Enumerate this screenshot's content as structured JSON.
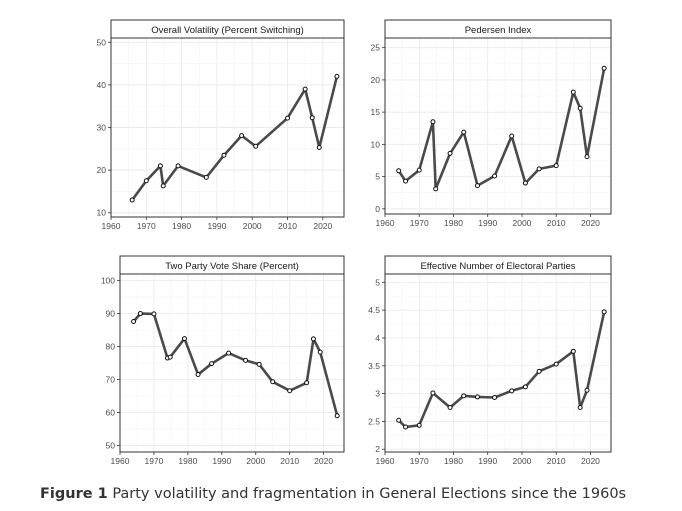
{
  "caption": {
    "label": "Figure 1",
    "text": "Party volatility and fragmentation in General Elections since the 1960s"
  },
  "colors": {
    "line": "#4a4a4a",
    "marker_fill": "#ffffff",
    "panel_border": "#333333",
    "grid": "#ebebeb",
    "axis_text": "#4d4d4d"
  },
  "chart_data": [
    {
      "type": "line",
      "title": "Overall Volatility (Percent Switching)",
      "xlabel": "",
      "ylabel": "",
      "xlim": [
        1960,
        2026
      ],
      "ylim": [
        9,
        51
      ],
      "xticks": [
        1960,
        1970,
        1980,
        1990,
        2000,
        2010,
        2020
      ],
      "yticks": [
        10,
        20,
        30,
        40,
        50
      ],
      "grid": true,
      "x": [
        1966,
        1970,
        1974,
        1974.8,
        1979,
        1987,
        1992,
        1997,
        2001,
        2010,
        2015,
        2017,
        2019,
        2024
      ],
      "y": [
        13,
        17.5,
        21,
        16.3,
        21,
        18.3,
        23.5,
        28.1,
        25.6,
        32.2,
        39,
        32.3,
        25.3,
        42
      ]
    },
    {
      "type": "line",
      "title": "Pedersen Index",
      "xlabel": "",
      "ylabel": "",
      "xlim": [
        1960,
        2026
      ],
      "ylim": [
        -0.8,
        26.5
      ],
      "xticks": [
        1960,
        1970,
        1980,
        1990,
        2000,
        2010,
        2020
      ],
      "yticks": [
        0,
        5,
        10,
        15,
        20,
        25
      ],
      "grid": true,
      "x": [
        1964,
        1966,
        1970,
        1974,
        1974.8,
        1979,
        1983,
        1987,
        1992,
        1997,
        2001,
        2005,
        2010,
        2015,
        2017,
        2019,
        2024
      ],
      "y": [
        5.9,
        4.3,
        6.0,
        13.5,
        3.1,
        8.6,
        11.9,
        3.6,
        5.1,
        11.3,
        4.0,
        6.2,
        6.7,
        18.1,
        15.6,
        8.1,
        21.8
      ]
    },
    {
      "type": "line",
      "title": "Two Party Vote Share (Percent)",
      "xlabel": "",
      "ylabel": "",
      "xlim": [
        1960,
        2026
      ],
      "ylim": [
        48,
        102
      ],
      "xticks": [
        1960,
        1970,
        1980,
        1990,
        2000,
        2010,
        2020
      ],
      "yticks": [
        50,
        60,
        70,
        80,
        90,
        100
      ],
      "grid": true,
      "x": [
        1964,
        1966,
        1970,
        1974,
        1974.8,
        1979,
        1983,
        1987,
        1992,
        1997,
        2001,
        2005,
        2010,
        2015,
        2017,
        2019,
        2024
      ],
      "y": [
        87.6,
        90.0,
        89.9,
        76.5,
        76.8,
        82.4,
        71.5,
        74.8,
        78.0,
        75.8,
        74.6,
        69.3,
        66.6,
        69.0,
        82.3,
        78.3,
        59.0
      ]
    },
    {
      "type": "line",
      "title": "Effective Number of Electoral Parties",
      "xlabel": "",
      "ylabel": "",
      "xlim": [
        1960,
        2026
      ],
      "ylim": [
        1.95,
        5.15
      ],
      "xticks": [
        1960,
        1970,
        1980,
        1990,
        2000,
        2010,
        2020
      ],
      "yticks": [
        2,
        2.5,
        3,
        3.5,
        4,
        4.5,
        5
      ],
      "ytick_labels": [
        "2",
        "2.5",
        "3",
        "3.5",
        "4",
        "4.5",
        "5"
      ],
      "grid": true,
      "x": [
        1964,
        1966,
        1970,
        1974,
        1979,
        1983,
        1987,
        1992,
        1997,
        2001,
        2005,
        2010,
        2015,
        2017,
        2019,
        2024
      ],
      "y": [
        2.52,
        2.4,
        2.43,
        3.01,
        2.75,
        2.96,
        2.94,
        2.93,
        3.05,
        3.12,
        3.4,
        3.53,
        3.76,
        2.75,
        3.06,
        4.47
      ]
    }
  ]
}
